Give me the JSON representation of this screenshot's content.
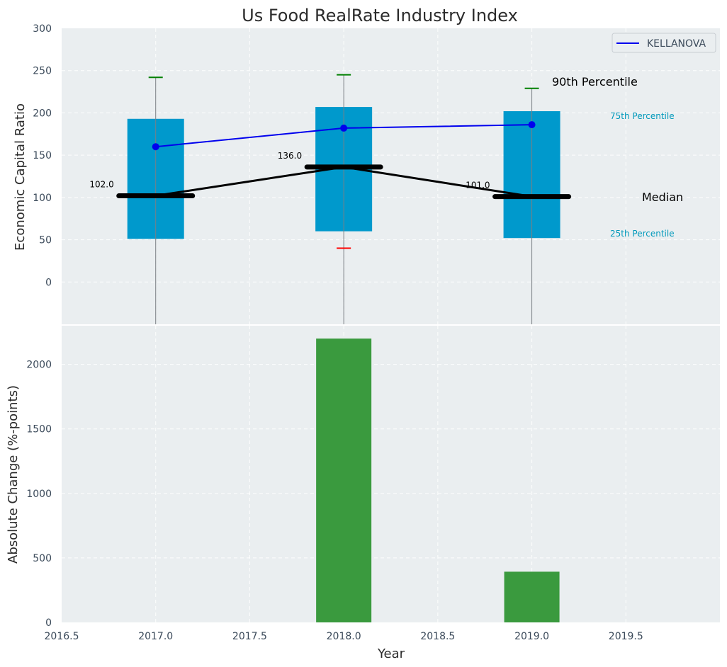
{
  "chart_data": {
    "title": "Us Food RealRate Industry Index",
    "panels": [
      {
        "type": "box",
        "ylabel": "Economic Capital Ratio",
        "ylim": [
          -50,
          300
        ],
        "yticks": [
          0,
          50,
          100,
          150,
          200,
          250,
          300
        ],
        "grid": true,
        "categories_x": [
          2017.0,
          2018.0,
          2019.0
        ],
        "boxes": [
          {
            "x": 2017.0,
            "p25": 51,
            "p75": 193,
            "median": 102,
            "p90": 242,
            "p10": null,
            "median_label": "102.0"
          },
          {
            "x": 2018.0,
            "p25": 60,
            "p75": 207,
            "median": 136,
            "p90": 245,
            "p10": 40,
            "median_label": "136.0"
          },
          {
            "x": 2019.0,
            "p25": 52,
            "p75": 202,
            "median": 101,
            "p90": 229,
            "p10": null,
            "median_label": "101.0"
          }
        ],
        "series": [
          {
            "name": "KELLANOVA",
            "color": "#0000ee",
            "x": [
              2017.0,
              2018.0,
              2019.0
            ],
            "values": [
              160,
              182,
              186
            ]
          }
        ],
        "legend": {
          "placement": "top-right",
          "entries": [
            "KELLANOVA"
          ]
        },
        "annotations": {
          "p90": "90th Percentile",
          "p75": "75th Percentile",
          "median": "Median",
          "p25": "25th Percentile"
        },
        "colors": {
          "box": "#0099cc",
          "median": "#000000",
          "p90_cap": "#008000",
          "p10_cap": "#ff0000",
          "annotation_blue": "#0099bb"
        }
      },
      {
        "type": "bar",
        "ylabel": "Absolute Change (%-points)",
        "xlabel": "Year",
        "ylim": [
          0,
          2300
        ],
        "yticks": [
          0,
          500,
          1000,
          1500,
          2000
        ],
        "grid": true,
        "x": [
          2018.0,
          2019.0
        ],
        "values": [
          2200,
          393
        ],
        "color": "#3a9a3e"
      }
    ],
    "xlim": [
      2016.5,
      2020.0
    ],
    "xticks": [
      "2016.5",
      "2017.0",
      "2017.5",
      "2018.0",
      "2018.5",
      "2019.0",
      "2019.5"
    ]
  }
}
